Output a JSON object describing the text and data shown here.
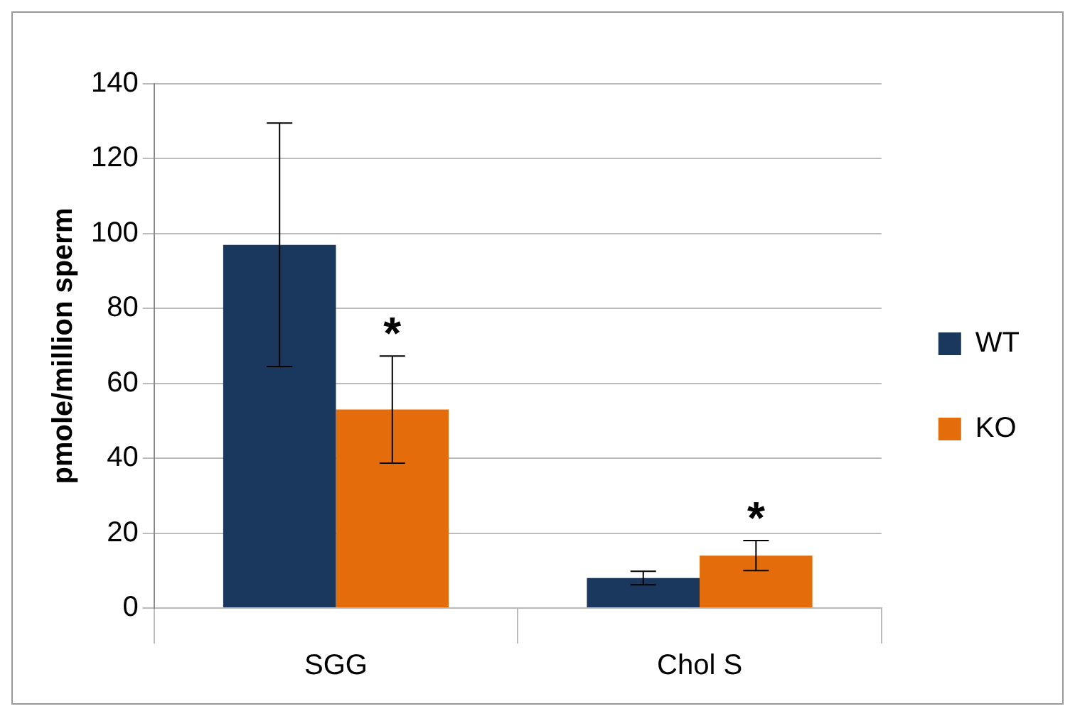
{
  "chart_data": {
    "type": "bar",
    "ylabel": "pmole/million sperm",
    "categories": [
      "SGG",
      "Chol S"
    ],
    "series": [
      {
        "name": "WT",
        "color": "#1a375e",
        "values": [
          97,
          8
        ],
        "errors": [
          32.5,
          1.8
        ]
      },
      {
        "name": "KO",
        "color": "#e46c0a",
        "values": [
          53,
          14
        ],
        "errors": [
          14.3,
          4
        ]
      }
    ],
    "ylim": [
      0,
      140
    ],
    "yticks": [
      0,
      20,
      40,
      60,
      80,
      100,
      120,
      140
    ],
    "grid": "y",
    "legend": "right",
    "annotations": [
      {
        "text": "*",
        "x": "SGG",
        "y": 53
      },
      {
        "text": "*",
        "x": "Chol S",
        "y": 14
      }
    ]
  }
}
